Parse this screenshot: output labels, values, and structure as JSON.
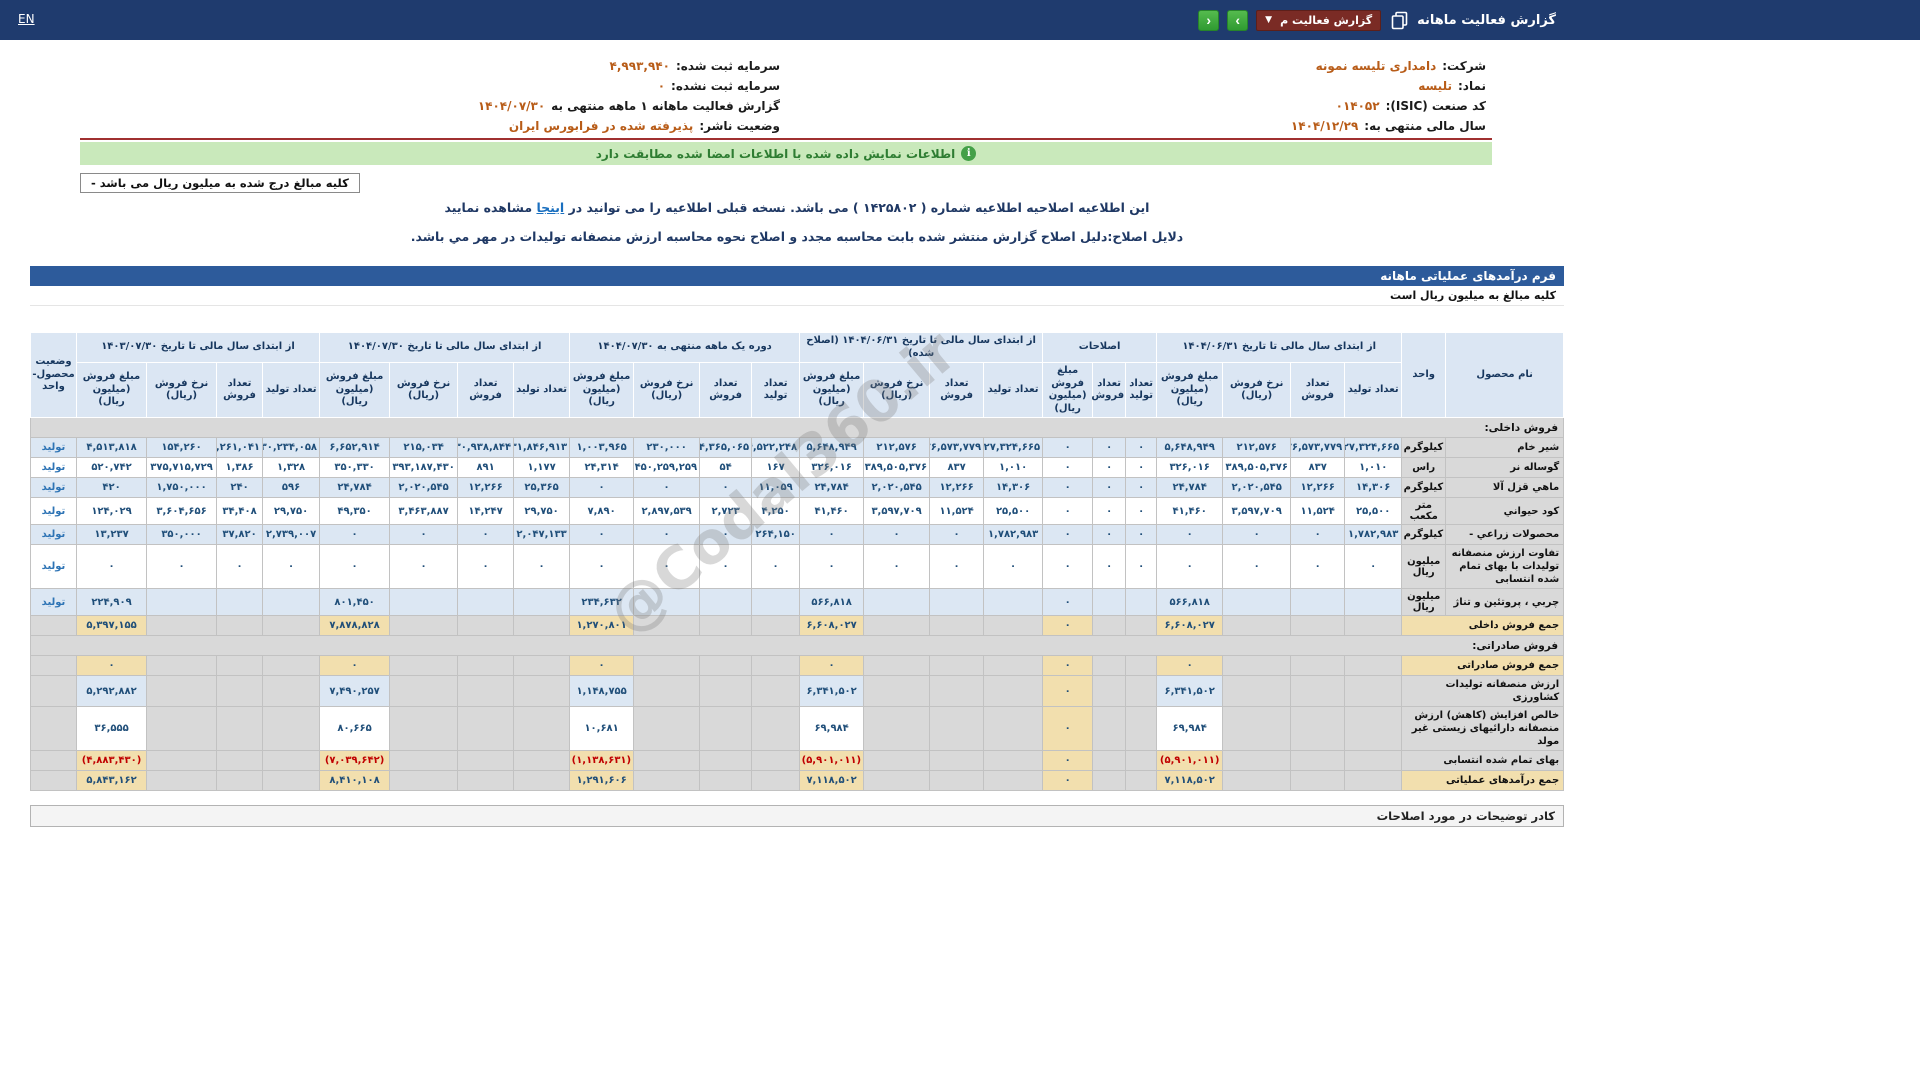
{
  "topbar": {
    "title": "گزارش فعالیت ماهانه",
    "report_select_value": "گزارش فعالیت م",
    "en_label": "EN",
    "next_label": "›",
    "prev_label": "‹"
  },
  "company_info": {
    "rows": [
      {
        "right_label": "شرکت:",
        "right_value": "دامداری تلیسه نمونه",
        "left_label": "سرمایه ثبت شده:",
        "left_value": "۴,۹۹۳,۹۴۰"
      },
      {
        "right_label": "نماد:",
        "right_value": "تلیسه",
        "left_label": "سرمایه ثبت نشده:",
        "left_value": "۰"
      },
      {
        "right_label": "کد صنعت (ISIC):",
        "right_value": "۰۱۴۰۵۲",
        "left_label": "گزارش فعالیت ماهانه ۱ ماهه منتهی به",
        "left_value": "۱۴۰۴/۰۷/۳۰"
      },
      {
        "right_label": "سال مالی منتهی به:",
        "right_value": "۱۴۰۴/۱۲/۲۹",
        "left_label": "وضعیت ناشر:",
        "left_value": "پذیرفته شده در فرابورس ایران"
      }
    ]
  },
  "signature_notice": "اطلاعات نمایش داده شده با اطلاعات امضا شده مطابقت دارد",
  "amounts_box": "کلیه مبالغ درج شده به میلیون ریال می باشد -",
  "amendment": {
    "line1_before": "این اطلاعیه اصلاحیه اطلاعیه شماره ( ۱۴۲۵۸۰۲ ) می باشد. نسخه قبلی اطلاعیه را می توانید در",
    "line1_link": "اینجا",
    "line1_after": "مشاهده نمایید",
    "line2": "دلایل اصلاح:دلیل اصلاح گزارش منتشر شده بابت محاسبه مجدد و اصلاح نحوه محاسبه ارزش منصفانه تولیدات در مهر مي باشد."
  },
  "form": {
    "title": "فرم درآمدهای عملیاتی ماهانه",
    "currency_note": "کلیه مبالغ به میلیون ریال است",
    "footer_note": "کادر توضیحات در مورد اصلاحات"
  },
  "watermark": "@Codal360.ir",
  "table": {
    "headers": {
      "product": "نام محصول",
      "unit": "واحد",
      "status": "وضعیت محصول- واحد",
      "sub_prod": "تعداد تولید",
      "sub_sales": "تعداد فروش",
      "sub_rate": "نرخ فروش (ریال)",
      "sub_amount": "مبلغ فروش (میلیون ریال)"
    },
    "groups": [
      {
        "label": "از ابتدای سال مالی تا تاریخ ۱۴۰۴/۰۶/۳۱",
        "type": "full"
      },
      {
        "label": "اصلاحات",
        "type": "adj"
      },
      {
        "label": "از ابتدای سال مالی تا تاریخ ۱۴۰۴/۰۶/۳۱ (اصلاح شده)",
        "type": "full"
      },
      {
        "label": "دوره یک ماهه منتهی به ۱۴۰۴/۰۷/۳۰",
        "type": "full"
      },
      {
        "label": "از ابتدای سال مالی تا تاریخ ۱۴۰۴/۰۷/۳۰",
        "type": "full"
      },
      {
        "label": "از ابتدای سال مالی تا تاریخ ۱۴۰۳/۰۷/۳۰",
        "type": "full"
      }
    ],
    "rows": [
      {
        "type": "section",
        "label": "فروش داخلی:"
      },
      {
        "type": "data",
        "shade": true,
        "name": "شیر خام",
        "unit": "کیلوگرم",
        "status": "تولید",
        "cells": [
          "۲۷,۳۲۴,۶۶۵",
          "۲۶,۵۷۳,۷۷۹",
          "۲۱۲,۵۷۶",
          "۵,۶۴۸,۹۴۹",
          "۰",
          "۰",
          "۰",
          "۲۷,۳۲۴,۶۶۵",
          "۲۶,۵۷۳,۷۷۹",
          "۲۱۲,۵۷۶",
          "۵,۶۴۸,۹۴۹",
          "۴,۵۲۲,۲۴۸",
          "۴,۳۶۵,۰۶۵",
          "۲۳۰,۰۰۰",
          "۱,۰۰۳,۹۶۵",
          "۳۱,۸۴۶,۹۱۳",
          "۳۰,۹۳۸,۸۴۴",
          "۲۱۵,۰۳۴",
          "۶,۶۵۲,۹۱۴",
          "۳۰,۲۳۴,۰۵۸",
          "۲۹,۲۶۱,۰۴۱",
          "۱۵۴,۲۶۰",
          "۴,۵۱۳,۸۱۸"
        ]
      },
      {
        "type": "data",
        "shade": false,
        "name": "گوساله نر",
        "unit": "راس",
        "status": "تولید",
        "cells": [
          "۱,۰۱۰",
          "۸۳۷",
          "۳۸۹,۵۰۵,۳۷۶",
          "۳۲۶,۰۱۶",
          "۰",
          "۰",
          "۰",
          "۱,۰۱۰",
          "۸۳۷",
          "۳۸۹,۵۰۵,۳۷۶",
          "۳۲۶,۰۱۶",
          "۱۶۷",
          "۵۴",
          "۴۵۰,۲۵۹,۲۵۹",
          "۲۴,۳۱۴",
          "۱,۱۷۷",
          "۸۹۱",
          "۳۹۳,۱۸۷,۴۳۰",
          "۳۵۰,۳۳۰",
          "۱,۳۲۸",
          "۱,۳۸۶",
          "۳۷۵,۷۱۵,۷۲۹",
          "۵۲۰,۷۴۲"
        ]
      },
      {
        "type": "data",
        "shade": true,
        "name": "ماهي قزل آلا",
        "unit": "کیلوگرم",
        "status": "تولید",
        "cells": [
          "۱۴,۳۰۶",
          "۱۲,۲۶۶",
          "۲,۰۲۰,۵۴۵",
          "۲۴,۷۸۴",
          "۰",
          "۰",
          "۰",
          "۱۴,۳۰۶",
          "۱۲,۲۶۶",
          "۲,۰۲۰,۵۴۵",
          "۲۴,۷۸۴",
          "۱۱,۰۵۹",
          "۰",
          "۰",
          "۰",
          "۲۵,۳۶۵",
          "۱۲,۲۶۶",
          "۲,۰۲۰,۵۴۵",
          "۲۴,۷۸۴",
          "۵۹۶",
          "۲۴۰",
          "۱,۷۵۰,۰۰۰",
          "۴۲۰"
        ]
      },
      {
        "type": "data",
        "shade": false,
        "name": "کود حیواني",
        "unit": "متر مکعب",
        "status": "تولید",
        "cells": [
          "۲۵,۵۰۰",
          "۱۱,۵۲۴",
          "۳,۵۹۷,۷۰۹",
          "۴۱,۴۶۰",
          "۰",
          "۰",
          "۰",
          "۲۵,۵۰۰",
          "۱۱,۵۲۴",
          "۳,۵۹۷,۷۰۹",
          "۴۱,۴۶۰",
          "۴,۲۵۰",
          "۲,۷۲۳",
          "۲,۸۹۷,۵۳۹",
          "۷,۸۹۰",
          "۲۹,۷۵۰",
          "۱۴,۲۴۷",
          "۳,۴۶۳,۸۸۷",
          "۴۹,۳۵۰",
          "۲۹,۷۵۰",
          "۳۴,۴۰۸",
          "۳,۶۰۴,۶۵۶",
          "۱۲۴,۰۲۹"
        ]
      },
      {
        "type": "data",
        "shade": true,
        "name": "محصولات زراعي -",
        "unit": "کیلوگرم",
        "status": "تولید",
        "cells": [
          "۱,۷۸۲,۹۸۳",
          "۰",
          "۰",
          "۰",
          "۰",
          "۰",
          "۰",
          "۱,۷۸۲,۹۸۳",
          "۰",
          "۰",
          "۰",
          "۲۶۴,۱۵۰",
          "۰",
          "۰",
          "۰",
          "۲,۰۴۷,۱۳۳",
          "۰",
          "۰",
          "۰",
          "۲,۷۳۹,۰۰۷",
          "۳۷,۸۲۰",
          "۳۵۰,۰۰۰",
          "۱۳,۲۳۷"
        ]
      },
      {
        "type": "data",
        "shade": false,
        "name": "تفاوت ارزش منصفانه تولیدات با بهای تمام شده انتسابی",
        "unit": "میلیون ریال",
        "status": "تولید",
        "cells": [
          "۰",
          "۰",
          "۰",
          "۰",
          "۰",
          "۰",
          "۰",
          "۰",
          "۰",
          "۰",
          "۰",
          "۰",
          "۰",
          "۰",
          "۰",
          "۰",
          "۰",
          "۰",
          "۰",
          "۰",
          "۰",
          "۰",
          "۰"
        ]
      },
      {
        "type": "data",
        "shade": true,
        "name": "چربي ، پروتئین و تناژ",
        "unit": "میلیون ریال",
        "status": "تولید",
        "cells": [
          "",
          "",
          "",
          "۵۶۶,۸۱۸",
          "",
          "",
          "۰",
          "",
          "",
          "",
          "۵۶۶,۸۱۸",
          "",
          "",
          "",
          "۲۳۴,۶۳۲",
          "",
          "",
          "",
          "۸۰۱,۴۵۰",
          "",
          "",
          "",
          "۲۲۴,۹۰۹"
        ]
      },
      {
        "type": "summary",
        "style": "total",
        "shade": false,
        "label": "جمع فروش داخلی",
        "amounts": [
          "۶,۶۰۸,۰۲۷",
          "۰",
          "۶,۶۰۸,۰۲۷",
          "۱,۲۷۰,۸۰۱",
          "۷,۸۷۸,۸۲۸",
          "۵,۳۹۷,۱۵۵"
        ]
      },
      {
        "type": "section",
        "label": "فروش صادراتی:"
      },
      {
        "type": "summary",
        "style": "total",
        "shade": false,
        "label": "جمع فروش صادراتی",
        "amounts": [
          "۰",
          "۰",
          "۰",
          "۰",
          "۰",
          "۰"
        ]
      },
      {
        "type": "summary",
        "style": "plain",
        "shade": true,
        "label": "ارزش منصفانه تولیدات کشاورزی",
        "amounts": [
          "۶,۳۴۱,۵۰۲",
          "۰",
          "۶,۳۴۱,۵۰۲",
          "۱,۱۴۸,۷۵۵",
          "۷,۴۹۰,۲۵۷",
          "۵,۲۹۲,۸۸۲"
        ]
      },
      {
        "type": "summary",
        "style": "plain",
        "shade": false,
        "label": "خالص افزایش (کاهش) ارزش منصفانه دارائیهای زیستی غیر مولد",
        "amounts": [
          "۶۹,۹۸۴",
          "۰",
          "۶۹,۹۸۴",
          "۱۰,۶۸۱",
          "۸۰,۶۶۵",
          "۳۶,۵۵۵"
        ]
      },
      {
        "type": "summary",
        "style": "negative",
        "shade": false,
        "label": "بهای تمام شده انتسابی",
        "amounts": [
          "(۵,۹۰۱,۰۱۱)",
          "۰",
          "(۵,۹۰۱,۰۱۱)",
          "(۱,۱۳۸,۶۳۱)",
          "(۷,۰۳۹,۶۴۲)",
          "(۴,۸۸۳,۴۳۰)"
        ]
      },
      {
        "type": "summary",
        "style": "total",
        "shade": false,
        "label": "جمع درآمدهای عملیاتی",
        "amounts": [
          "۷,۱۱۸,۵۰۲",
          "۰",
          "۷,۱۱۸,۵۰۲",
          "۱,۲۹۱,۶۰۶",
          "۸,۴۱۰,۱۰۸",
          "۵,۸۴۳,۱۶۲"
        ]
      }
    ]
  }
}
